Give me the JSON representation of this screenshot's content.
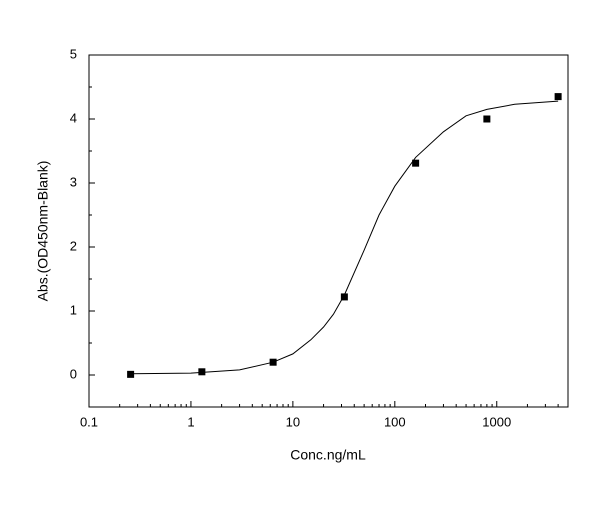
{
  "chart_data": {
    "type": "scatter",
    "x_label": "Conc.ng/mL",
    "y_label": "Abs.(OD450nm-Blank)",
    "x_scale": "log",
    "color": "#000000",
    "x": [
      0.256,
      1.28,
      6.4,
      32,
      160,
      800,
      4000
    ],
    "values": [
      0.01,
      0.05,
      0.2,
      1.22,
      3.31,
      4.0,
      4.35
    ],
    "fit": {
      "x": [
        0.256,
        1,
        3,
        6.4,
        10,
        15,
        20,
        25,
        32,
        50,
        70,
        100,
        160,
        300,
        500,
        800,
        1500,
        4000
      ],
      "values": [
        0.02,
        0.03,
        0.08,
        0.2,
        0.33,
        0.55,
        0.75,
        0.95,
        1.25,
        1.95,
        2.5,
        2.95,
        3.4,
        3.8,
        4.05,
        4.15,
        4.23,
        4.28
      ]
    },
    "xlim": [
      0.1,
      5000
    ],
    "xticks": [
      0.1,
      1,
      10,
      100,
      1000
    ],
    "ylim": [
      -0.5,
      5
    ],
    "yticks": [
      0,
      1,
      2,
      3,
      4,
      5
    ]
  }
}
